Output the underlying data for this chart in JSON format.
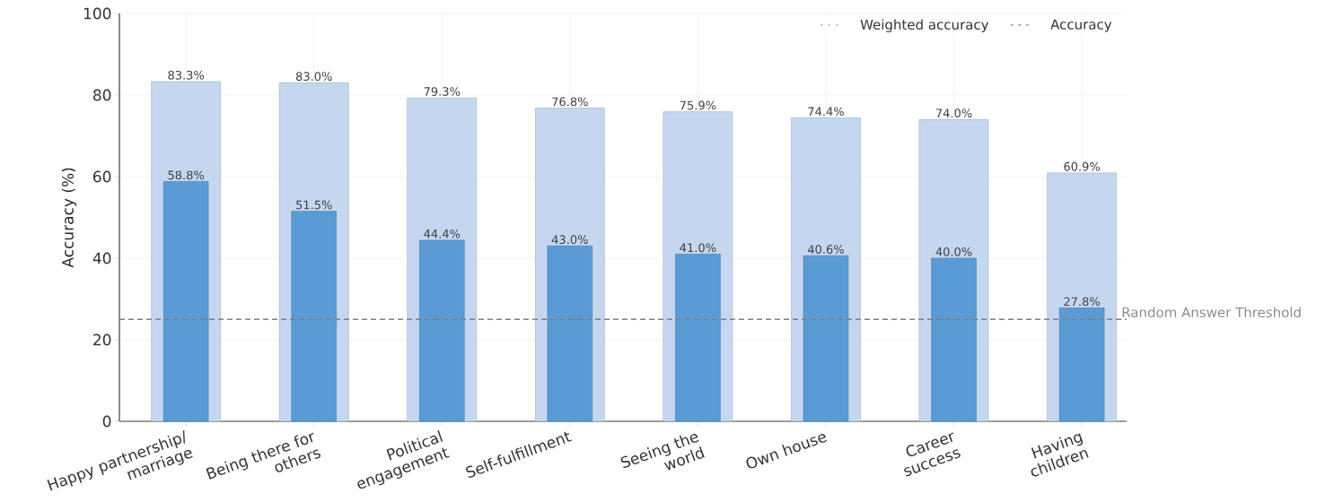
{
  "chart_data": {
    "type": "bar",
    "ylabel": "Accuracy (%)",
    "categories": [
      "Happy partnership/ marriage",
      "Being there for others",
      "Political engagement",
      "Self-fulfillment",
      "Seeing the world",
      "Own house",
      "Career success",
      "Having children"
    ],
    "series": [
      {
        "name": "Weighted accuracy",
        "color": "#c5d7f0",
        "values": [
          83.3,
          83.0,
          79.3,
          76.8,
          75.9,
          74.4,
          74.0,
          60.9
        ],
        "value_labels": [
          "83.3%",
          "83.0%",
          "79.3%",
          "76.8%",
          "75.9%",
          "74.4%",
          "74.0%",
          "60.9%"
        ]
      },
      {
        "name": "Accuracy",
        "color": "#5b9bd5",
        "values": [
          58.8,
          51.5,
          44.4,
          43.0,
          41.0,
          40.6,
          40.0,
          27.8
        ],
        "value_labels": [
          "58.8%",
          "51.5%",
          "44.4%",
          "43.0%",
          "41.0%",
          "40.6%",
          "40.0%",
          "27.8%"
        ]
      }
    ],
    "ylim": [
      0,
      100
    ],
    "yticks": [
      0,
      20,
      40,
      60,
      80,
      100
    ],
    "grid": true,
    "legend": "top right",
    "ref_lines": [
      {
        "axis": "y",
        "value": 25,
        "label": "Random Answer Threshold",
        "color": "#808080",
        "line_style": "dashed"
      }
    ]
  }
}
